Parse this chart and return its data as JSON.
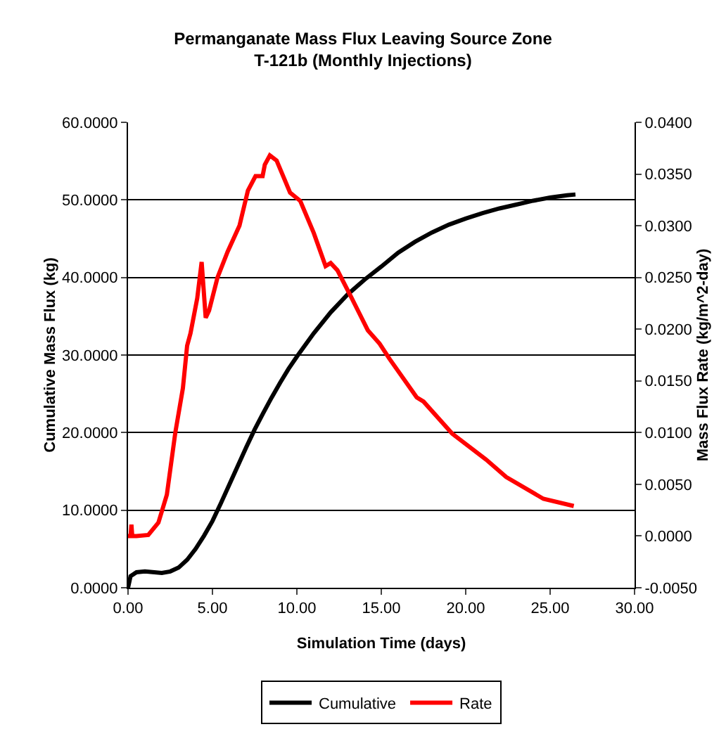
{
  "chart_data": {
    "type": "line",
    "title": "Permanganate Mass Flux Leaving Source Zone\nT-121b (Monthly Injections)",
    "xlabel": "Simulation Time (days)",
    "ylabel": "Cumulative Mass Flux (kg)",
    "y2label": "Mass Flux Rate (kg/m^2-day)",
    "xlim": [
      0,
      30
    ],
    "xticks": [
      {
        "value": 0,
        "label": "0.00"
      },
      {
        "value": 5,
        "label": "5.00"
      },
      {
        "value": 10,
        "label": "10.00"
      },
      {
        "value": 15,
        "label": "15.00"
      },
      {
        "value": 20,
        "label": "20.00"
      },
      {
        "value": 25,
        "label": "25.00"
      },
      {
        "value": 30,
        "label": "30.00"
      }
    ],
    "ylim": [
      0,
      60
    ],
    "yticks": [
      {
        "value": 0,
        "label": "0.0000"
      },
      {
        "value": 10,
        "label": "10.0000"
      },
      {
        "value": 20,
        "label": "20.0000"
      },
      {
        "value": 30,
        "label": "30.0000"
      },
      {
        "value": 40,
        "label": "40.0000"
      },
      {
        "value": 50,
        "label": "50.0000"
      },
      {
        "value": 60,
        "label": "60.0000"
      }
    ],
    "y2lim": [
      -0.005,
      0.04
    ],
    "y2ticks": [
      {
        "value": -0.005,
        "label": "-0.0050"
      },
      {
        "value": 0,
        "label": "0.0000"
      },
      {
        "value": 0.005,
        "label": "0.0050"
      },
      {
        "value": 0.01,
        "label": "0.0100"
      },
      {
        "value": 0.015,
        "label": "0.0150"
      },
      {
        "value": 0.02,
        "label": "0.0200"
      },
      {
        "value": 0.025,
        "label": "0.0250"
      },
      {
        "value": 0.03,
        "label": "0.0300"
      },
      {
        "value": 0.035,
        "label": "0.0350"
      },
      {
        "value": 0.04,
        "label": "0.0400"
      }
    ],
    "grid": "y",
    "legend": "bottom",
    "marker": "none",
    "line_style": "solid",
    "series": [
      {
        "name": "Cumulative",
        "color": "#000000",
        "x": [
          0,
          0.15,
          0.5,
          1,
          2,
          2.5,
          3,
          3.5,
          4,
          4.5,
          5,
          5.5,
          6,
          6.5,
          7,
          7.5,
          8,
          8.5,
          9,
          9.5,
          10,
          11,
          12,
          13,
          14,
          15,
          16,
          17,
          18,
          19,
          20,
          21,
          22,
          23,
          24,
          25,
          26,
          26.5
        ],
        "values": [
          0,
          1.5,
          2.0,
          2.1,
          1.9,
          2.1,
          2.6,
          3.6,
          5.0,
          6.7,
          8.6,
          10.9,
          13.3,
          15.7,
          18.1,
          20.4,
          22.5,
          24.5,
          26.4,
          28.2,
          29.8,
          32.8,
          35.5,
          37.8,
          39.7,
          41.4,
          43.2,
          44.6,
          45.8,
          46.8,
          47.6,
          48.3,
          48.9,
          49.4,
          49.9,
          50.3,
          50.6,
          50.7
        ]
      },
      {
        "name": "Rate",
        "color": "#ff0000",
        "axis": "y2",
        "x": [
          0,
          0.15,
          0.2,
          0.25,
          0.5,
          1.2,
          1.8,
          2.3,
          2.8,
          3.25,
          3.5,
          3.7,
          4.1,
          4.36,
          4.6,
          4.8,
          5.3,
          5.9,
          6.6,
          7.1,
          7.55,
          7.97,
          8.1,
          8.4,
          8.8,
          9.6,
          10.2,
          11.0,
          11.7,
          12.0,
          12.4,
          13.25,
          14.2,
          14.9,
          15.5,
          17.1,
          17.5,
          19.2,
          21.2,
          22.4,
          24.6,
          26.4
        ],
        "values": [
          0,
          0,
          0.0011,
          0,
          0,
          0.0001,
          0.0013,
          0.004,
          0.01,
          0.0143,
          0.0184,
          0.0196,
          0.023,
          0.0265,
          0.0211,
          0.0218,
          0.025,
          0.0275,
          0.03,
          0.0334,
          0.0348,
          0.0348,
          0.0359,
          0.0368,
          0.0363,
          0.0332,
          0.0324,
          0.0293,
          0.0261,
          0.0264,
          0.0257,
          0.023,
          0.0199,
          0.0186,
          0.0171,
          0.0134,
          0.013,
          0.0099,
          0.0074,
          0.0057,
          0.0036,
          0.0029
        ]
      }
    ]
  }
}
